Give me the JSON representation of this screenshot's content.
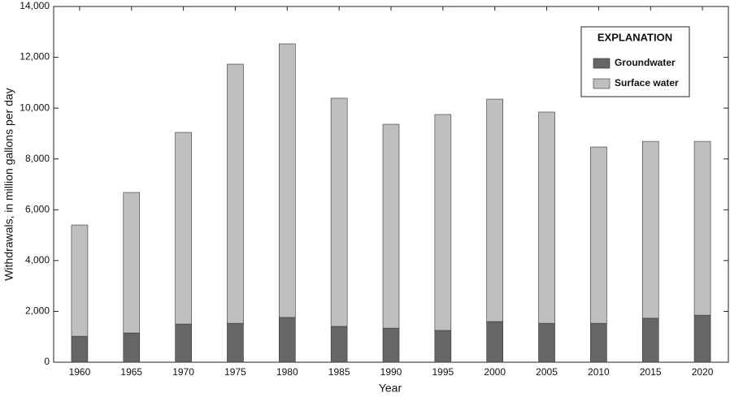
{
  "chart_data": {
    "type": "stacked-bar",
    "x_label": "Year",
    "y_label": "Withdrawals, in million gallons per day",
    "legend_title": "EXPLANATION",
    "categories": [
      "1960",
      "1965",
      "1970",
      "1975",
      "1980",
      "1985",
      "1990",
      "1995",
      "2000",
      "2005",
      "2010",
      "2015",
      "2020"
    ],
    "series": [
      {
        "name": "Groundwater",
        "color": "#666666",
        "values": [
          1020,
          1150,
          1500,
          1530,
          1760,
          1410,
          1340,
          1250,
          1600,
          1530,
          1530,
          1730,
          1850
        ]
      },
      {
        "name": "Surface water",
        "color": "#bfbfbf",
        "values": [
          4380,
          5530,
          7545,
          10200,
          10770,
          8980,
          8025,
          8500,
          8755,
          8315,
          6940,
          6960,
          6840
        ]
      }
    ],
    "ylim": [
      0,
      14000
    ],
    "yticks": [
      0,
      {
        "value": 2000,
        "label": "2,000"
      },
      {
        "value": 4000,
        "label": "4,000"
      },
      {
        "value": 6000,
        "label": "6,000"
      },
      {
        "value": 8000,
        "label": "8,000"
      },
      {
        "value": 10000,
        "label": "10,000"
      },
      {
        "value": 12000,
        "label": "12,000"
      },
      {
        "value": 14000,
        "label": "14,000"
      }
    ],
    "legend_position": "upper-right"
  }
}
